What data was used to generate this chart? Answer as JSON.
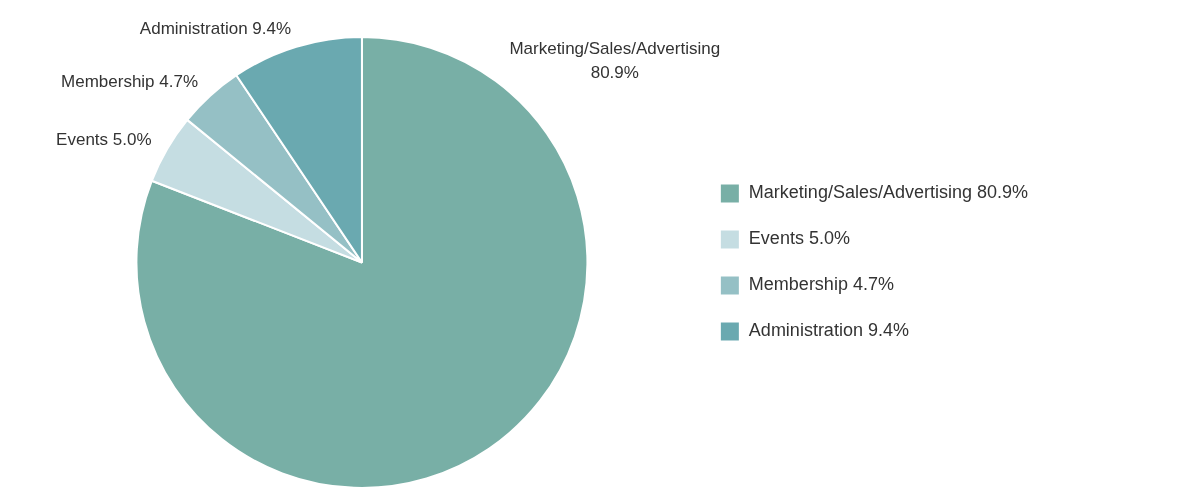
{
  "chart_data": {
    "type": "pie",
    "categories": [
      "Marketing/Sales/Advertising 80.9%",
      "Events 5.0%",
      "Membership 4.7%",
      "Administration 9.4%"
    ],
    "values": [
      80.9,
      5.0,
      4.7,
      9.4
    ],
    "colors": [
      "#78afa6",
      "#c5dde2",
      "#95c0c5",
      "#6aa9b0"
    ],
    "legend": "right"
  }
}
